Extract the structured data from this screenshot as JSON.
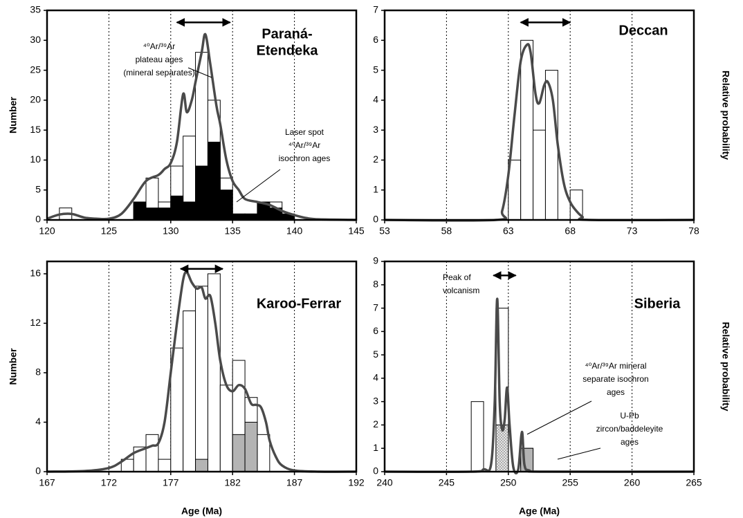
{
  "chart_data": [
    {
      "type": "histogram",
      "title": [
        "Paraná-",
        "Etendeka"
      ],
      "ylabel": "Number",
      "ylabel_side": "left",
      "xlim": [
        120,
        145
      ],
      "xticks": [
        120,
        125,
        130,
        135,
        140,
        145
      ],
      "ylim": [
        0,
        35
      ],
      "yticks": [
        0,
        5,
        10,
        15,
        20,
        25,
        30,
        35
      ],
      "grid": "x",
      "bins": [
        121,
        122,
        123,
        124,
        125,
        126,
        127,
        128,
        129,
        130,
        131,
        132,
        133,
        134,
        135,
        136,
        137,
        138,
        139,
        140
      ],
      "series": [
        {
          "color": "#ffffff",
          "values": [
            2,
            0,
            0,
            0,
            0,
            0,
            3,
            7,
            3,
            9,
            14,
            28,
            20,
            7,
            1,
            1,
            3,
            3,
            1
          ]
        },
        {
          "color": "#000000",
          "values": [
            0,
            0,
            0,
            0,
            0,
            0,
            3,
            2,
            2,
            4,
            3,
            9,
            13,
            5,
            1,
            1,
            3,
            2,
            1
          ]
        }
      ],
      "curve": {
        "color": "#4a4a4a",
        "x": [
          120,
          121,
          122,
          123,
          124,
          125,
          126,
          127,
          128,
          129,
          129.5,
          130,
          130.5,
          131,
          131.3,
          131.7,
          132,
          132.5,
          132.8,
          133.2,
          133.7,
          134,
          134.5,
          135,
          135.5,
          136,
          137,
          138,
          139,
          140,
          141,
          142,
          145
        ],
        "values": [
          0.2,
          0.9,
          1.0,
          0.4,
          0.2,
          0.2,
          1.0,
          3.5,
          6.5,
          7.5,
          8.5,
          9.5,
          13,
          21,
          18,
          20,
          23,
          28,
          31,
          26,
          19,
          16,
          10,
          6.5,
          5,
          3.5,
          3,
          2.5,
          1.5,
          0.8,
          0.3,
          0.1,
          0
        ]
      },
      "arrow": {
        "x": [
          130.5,
          134.8
        ],
        "y": 33
      },
      "annotations": [
        [
          "⁴⁰Ar/³⁹Ar",
          "plateau ages",
          "(mineral separates)"
        ],
        [
          "Laser spot",
          "⁴⁰Ar/³⁹Ar",
          "isochron ages"
        ]
      ]
    },
    {
      "type": "histogram",
      "title": [
        "Deccan"
      ],
      "ylabel": "Relative probability",
      "ylabel_side": "right",
      "xlim": [
        53,
        78
      ],
      "xticks": [
        53,
        58,
        63,
        68,
        73,
        78
      ],
      "ylim": [
        0,
        7
      ],
      "yticks": [
        0,
        1,
        2,
        3,
        4,
        5,
        6,
        7
      ],
      "grid": "x",
      "bins": [
        63,
        64,
        65,
        66,
        67,
        68,
        69
      ],
      "series": [
        {
          "color": "#ffffff",
          "values": [
            2,
            6,
            3,
            5,
            0,
            1
          ]
        }
      ],
      "curve": {
        "color": "#4a4a4a",
        "x": [
          53,
          62,
          62.5,
          63,
          63.5,
          64,
          64.5,
          64.8,
          65.2,
          65.5,
          65.9,
          66.2,
          66.6,
          67,
          67.5,
          68,
          68.5,
          69,
          69.5,
          78
        ],
        "values": [
          0,
          0,
          0.3,
          1.5,
          3.5,
          5.3,
          5.85,
          5.6,
          4.2,
          3.9,
          4.5,
          4.6,
          4.0,
          2.5,
          1.2,
          0.6,
          0.3,
          0.1,
          0,
          0
        ]
      },
      "arrow": {
        "x": [
          64,
          68
        ],
        "y": 6.6
      },
      "annotations": []
    },
    {
      "type": "histogram",
      "title": [
        "Karoo-Ferrar"
      ],
      "ylabel": "Number",
      "ylabel_side": "left",
      "xlabel": "Age (Ma)",
      "xlim": [
        167,
        192
      ],
      "xticks": [
        167,
        172,
        177,
        182,
        187,
        192
      ],
      "ylim": [
        0,
        17
      ],
      "yticks": [
        0,
        4,
        8,
        12,
        16
      ],
      "grid": "x",
      "bins": [
        173,
        174,
        175,
        176,
        177,
        178,
        179,
        180,
        181,
        182,
        183,
        184,
        185
      ],
      "series": [
        {
          "color": "#ffffff",
          "values": [
            1,
            2,
            3,
            1,
            10,
            13,
            15,
            16,
            7,
            9,
            6,
            3
          ]
        },
        {
          "color": "#b4b4b4",
          "values": [
            0,
            0,
            0,
            0,
            0,
            0,
            1,
            0,
            0,
            3,
            4,
            0
          ]
        }
      ],
      "curve": {
        "color": "#4a4a4a",
        "x": [
          167,
          170,
          172,
          173,
          174,
          175,
          175.5,
          176,
          176.5,
          177,
          177.5,
          178,
          178.3,
          178.7,
          179.1,
          179.5,
          179.8,
          180.2,
          180.6,
          181,
          181.5,
          182,
          182.5,
          183,
          183.5,
          183.9,
          184.3,
          184.7,
          185,
          185.5,
          186,
          187,
          189,
          192
        ],
        "values": [
          0,
          0.05,
          0.3,
          0.8,
          1.5,
          1.9,
          2.1,
          2.3,
          4,
          8,
          12,
          15.5,
          16.1,
          15.3,
          14.8,
          14.9,
          14.0,
          14.2,
          12,
          9,
          7,
          6.5,
          7.0,
          6.7,
          5.5,
          5.4,
          5.2,
          4,
          2.5,
          1.2,
          0.5,
          0.1,
          0,
          0
        ]
      },
      "arrow": {
        "x": [
          177.8,
          181.2
        ],
        "y": 16.4
      },
      "annotations": []
    },
    {
      "type": "histogram",
      "title": [
        "Siberia"
      ],
      "ylabel": "Relative probability",
      "ylabel_side": "right",
      "xlabel": "Age (Ma)",
      "xlim": [
        240,
        265
      ],
      "xticks": [
        240,
        245,
        250,
        255,
        260,
        265
      ],
      "ylim": [
        0,
        9
      ],
      "yticks": [
        0,
        1,
        2,
        3,
        4,
        5,
        6,
        7,
        8,
        9
      ],
      "grid": "x",
      "bins": [
        247,
        248,
        249,
        250,
        251,
        252
      ],
      "series": [
        {
          "color": "#ffffff",
          "values": [
            3,
            0,
            7,
            0,
            1
          ]
        },
        {
          "color": "#d8d8d8",
          "pattern": "dots",
          "values": [
            0,
            0,
            2,
            0,
            0
          ]
        },
        {
          "color": "#b4b4b4",
          "values": [
            0,
            0,
            0,
            0,
            1
          ]
        }
      ],
      "curve": {
        "color": "#4a4a4a",
        "x": [
          240,
          247,
          248,
          248.6,
          248.9,
          249.1,
          249.3,
          249.5,
          249.7,
          249.9,
          250.1,
          250.4,
          250.8,
          251.1,
          251.3,
          251.7,
          253,
          265
        ],
        "values": [
          0,
          0,
          0.1,
          0.3,
          3,
          7.4,
          3,
          1.8,
          2.2,
          3.6,
          2,
          0.2,
          0.1,
          1.7,
          0.3,
          0.05,
          0,
          0
        ]
      },
      "arrow": {
        "x": [
          248.8,
          250.6
        ],
        "y": 8.4
      },
      "annotations": [
        [
          "Peak of",
          "volcanism"
        ],
        [
          "⁴⁰Ar/³⁹Ar mineral",
          "separate isochron",
          "ages"
        ],
        [
          "U-Pb",
          "zircon/baddeleyite",
          "ages"
        ]
      ]
    }
  ]
}
